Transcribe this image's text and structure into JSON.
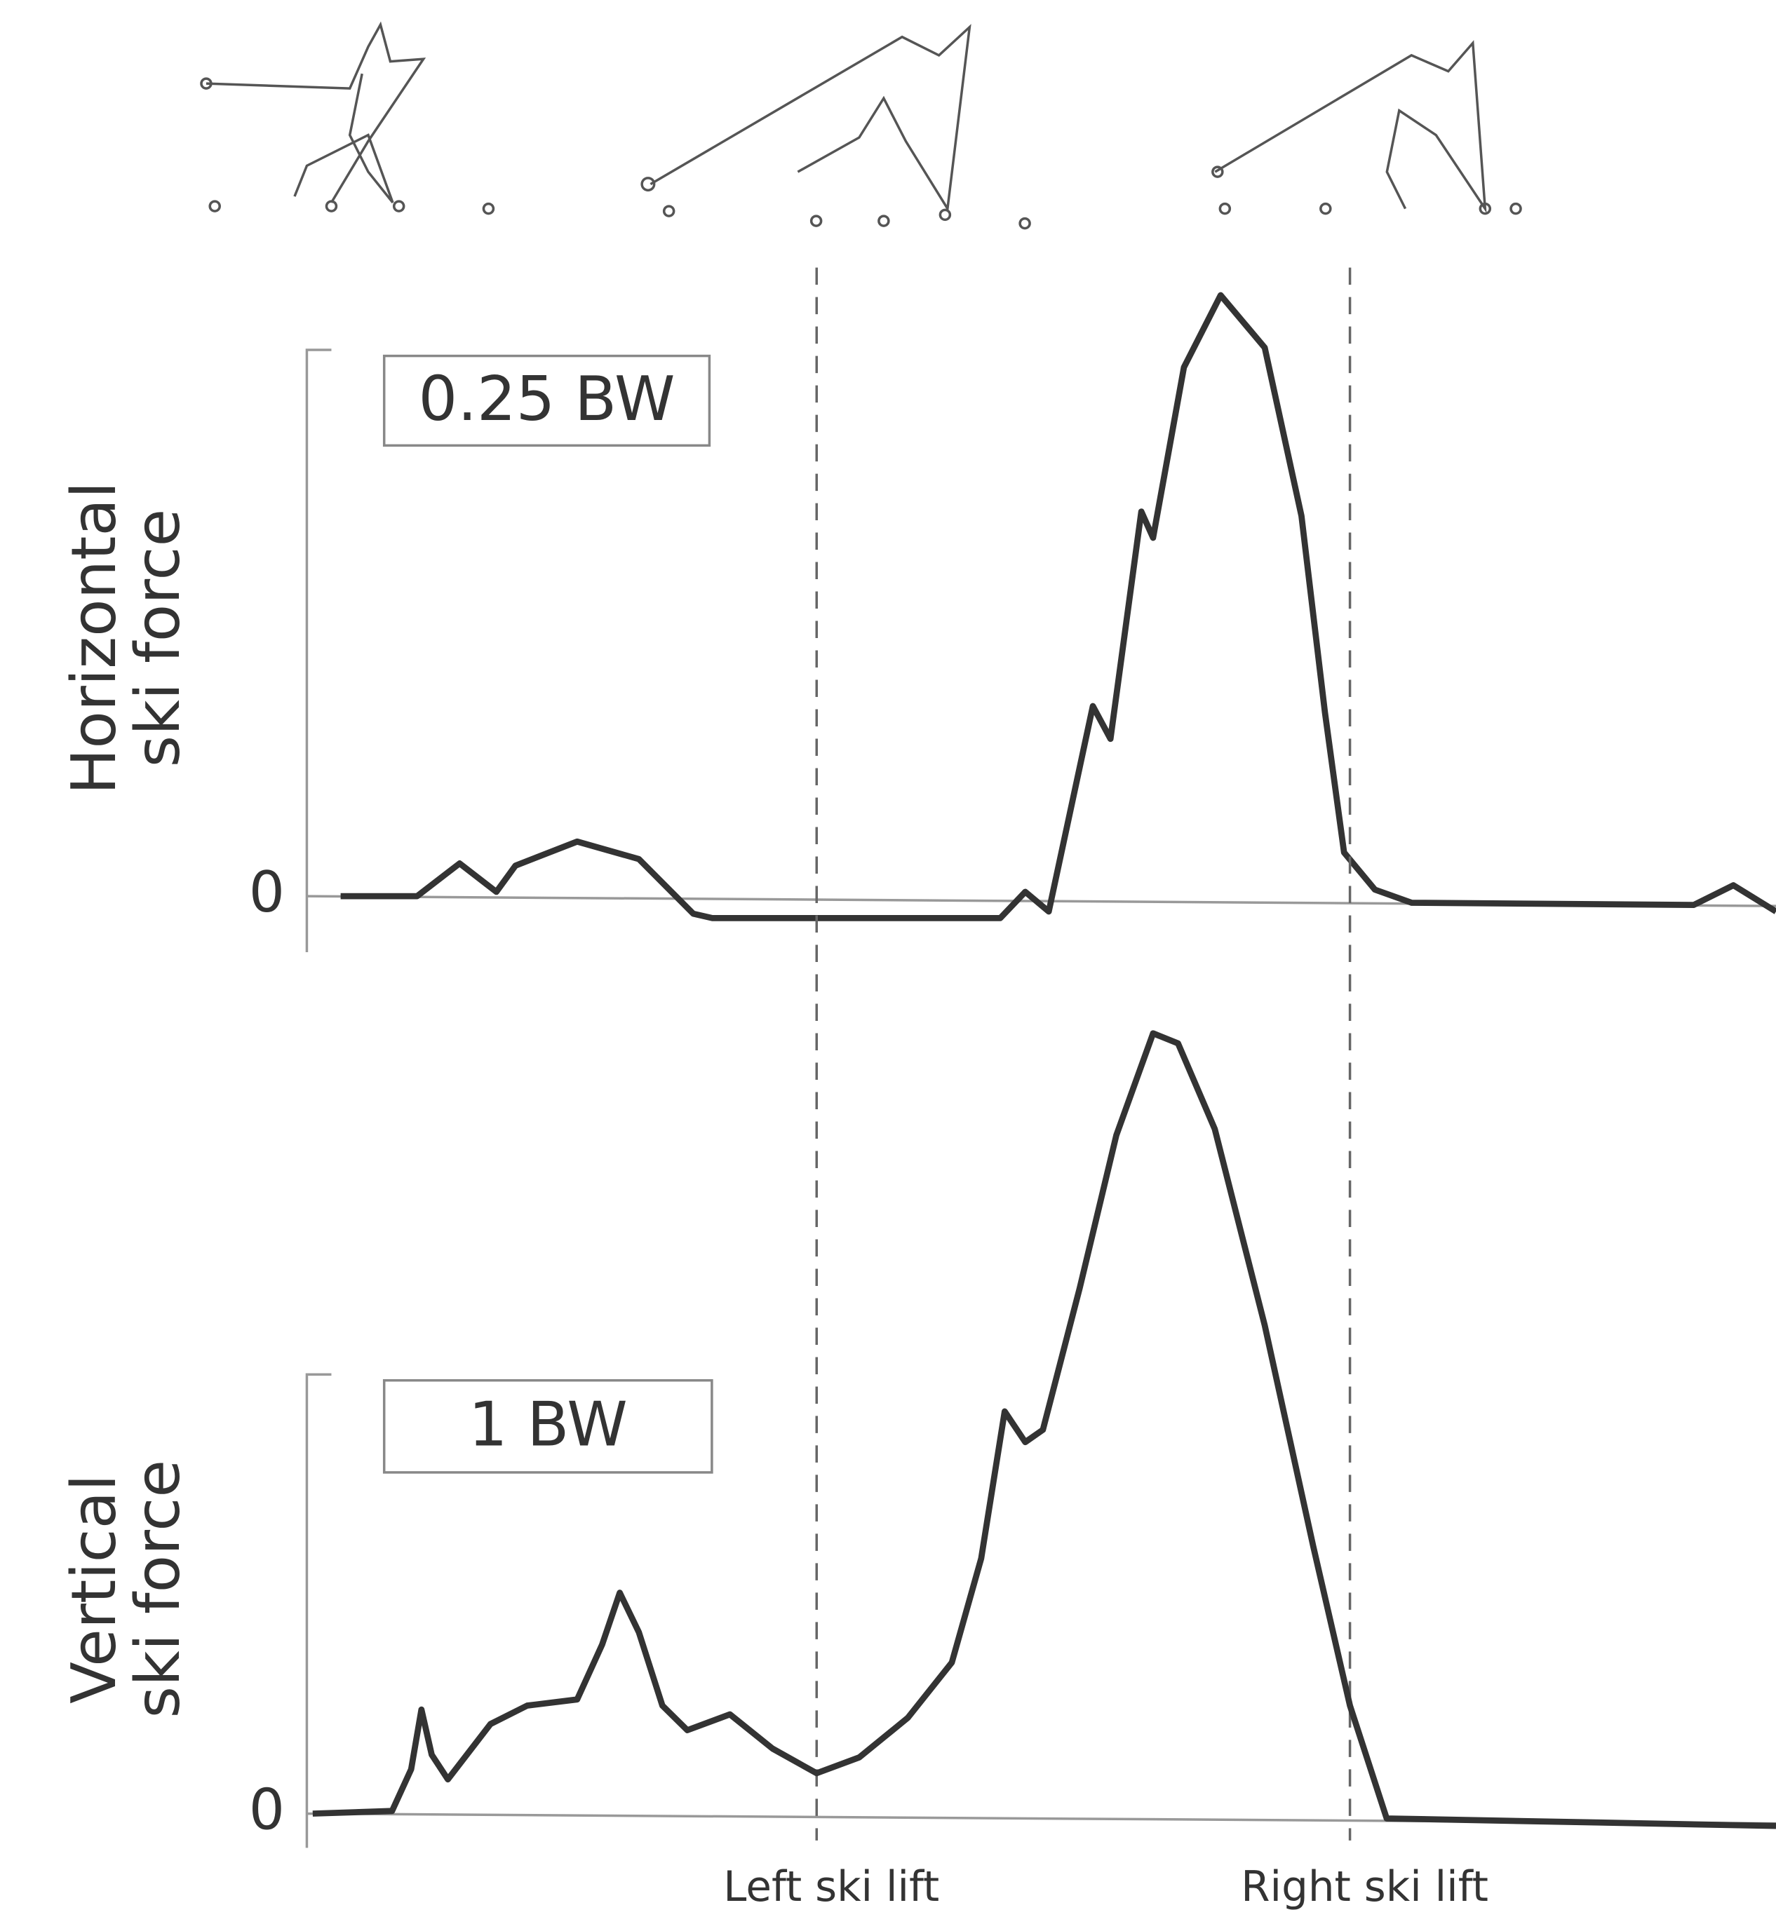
{
  "chart_data": [
    {
      "type": "line",
      "ylabel": [
        "Horizontal",
        "ski force"
      ],
      "scale_bar": {
        "value": 0.25,
        "label": "0.25 BW"
      },
      "xlim": [
        0,
        100
      ],
      "ylim": [
        -0.02,
        0.3
      ],
      "yticks": [
        0
      ],
      "color": "#333333",
      "x": [
        2.3,
        7.5,
        10.4,
        12.9,
        14.2,
        18.4,
        22.6,
        26.3,
        27.6,
        47.2,
        48.9,
        50.5,
        53.5,
        54.7,
        56.8,
        57.6,
        59.7,
        62.2,
        65.2,
        67.7,
        69.3,
        70.6,
        72.7,
        75.2,
        94.4,
        97.1,
        100
      ],
      "values": [
        0,
        0,
        0.015,
        0.002,
        0.014,
        0.025,
        0.017,
        -0.008,
        -0.01,
        -0.01,
        0.002,
        -0.007,
        0.087,
        0.072,
        0.176,
        0.164,
        0.242,
        0.275,
        0.251,
        0.174,
        0.084,
        0.02,
        0.003,
        -0.003,
        -0.004,
        0.005,
        -0.007
      ]
    },
    {
      "type": "line",
      "ylabel": [
        "Vertical",
        "ski force"
      ],
      "scale_bar": {
        "value": 1,
        "label": "1 BW"
      },
      "xlim": [
        0,
        100
      ],
      "ylim": [
        -0.05,
        1.85
      ],
      "yticks": [
        0
      ],
      "color": "#333333",
      "x": [
        0.4,
        5.8,
        7.1,
        7.8,
        8.5,
        9.6,
        12.5,
        15.0,
        18.4,
        20.1,
        21.3,
        22.6,
        24.2,
        25.9,
        28.8,
        31.7,
        34.7,
        37.6,
        40.9,
        43.9,
        45.9,
        47.5,
        48.9,
        50.1,
        52.6,
        55.1,
        57.6,
        59.3,
        61.8,
        65.2,
        68.5,
        71.0,
        73.5,
        100
      ],
      "values": [
        0,
        0.006,
        0.101,
        0.237,
        0.134,
        0.078,
        0.204,
        0.246,
        0.26,
        0.385,
        0.503,
        0.413,
        0.246,
        0.19,
        0.226,
        0.148,
        0.092,
        0.128,
        0.218,
        0.344,
        0.581,
        0.916,
        0.846,
        0.874,
        1.196,
        1.545,
        1.777,
        1.754,
        1.559,
        1.112,
        0.609,
        0.246,
        -0.011,
        -0.028
      ],
      "annotations": [
        {
          "x": 34.7,
          "label": "Left ski lift"
        },
        {
          "x": 71.0,
          "label": "Right ski lift"
        }
      ]
    }
  ]
}
